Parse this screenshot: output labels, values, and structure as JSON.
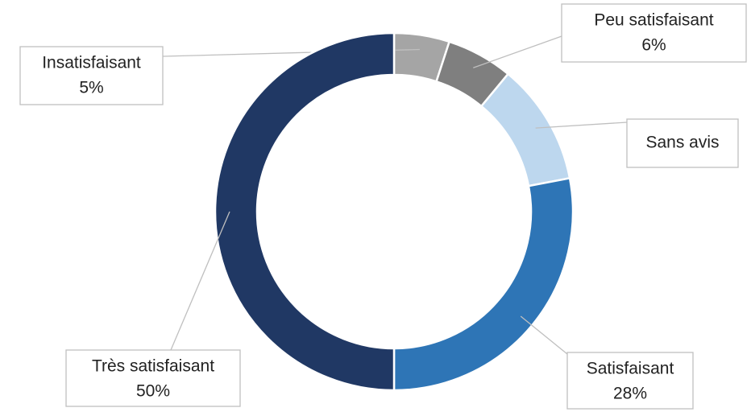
{
  "chart_data": {
    "type": "pie",
    "categories": [
      "Insatisfaisant",
      "Peu satisfaisant",
      "Sans avis",
      "Satisfaisant",
      "Très satisfaisant"
    ],
    "values": [
      5,
      6,
      11,
      28,
      50
    ],
    "value_labels": [
      "5%",
      "6%",
      null,
      "28%",
      "50%"
    ],
    "colors": [
      "#a5a5a5",
      "#7f7f7f",
      "#bdd7ee",
      "#2e75b6",
      "#203864"
    ]
  }
}
